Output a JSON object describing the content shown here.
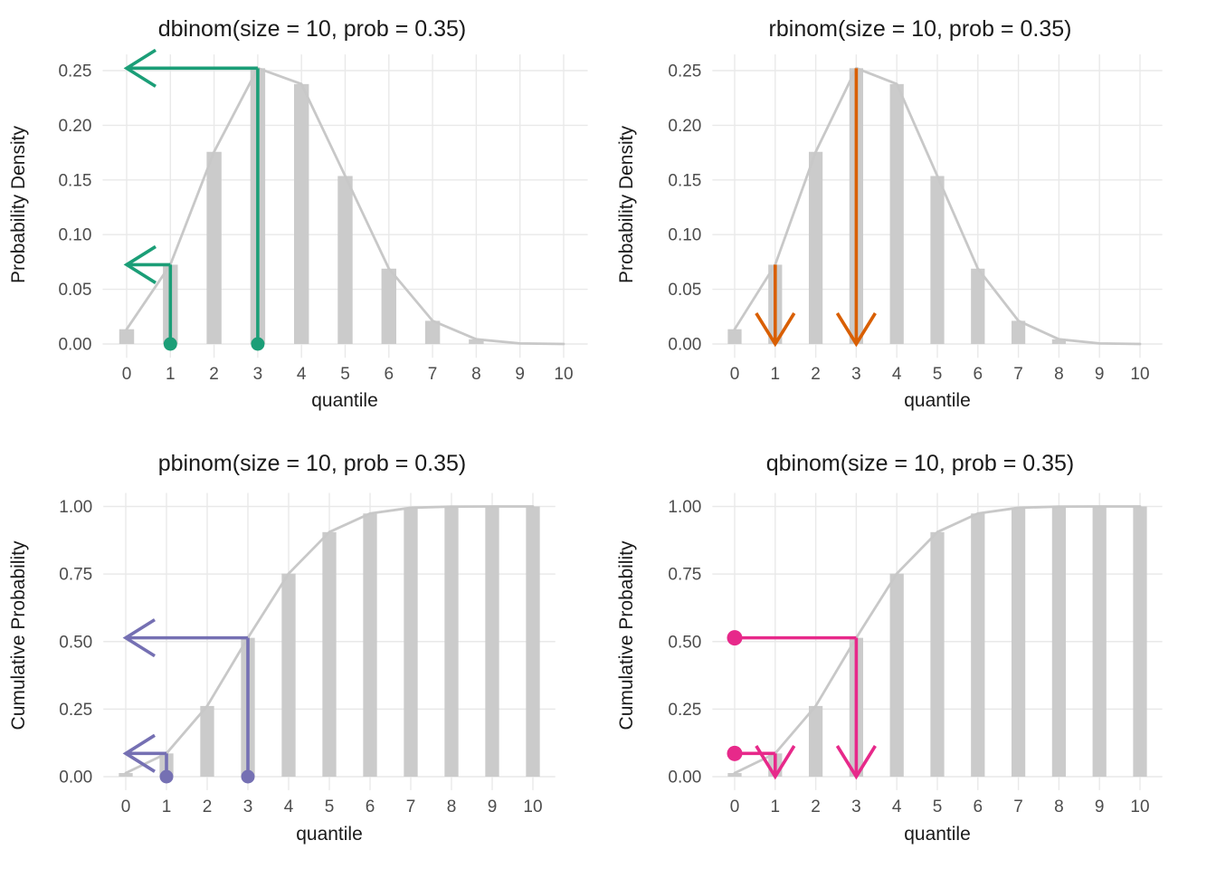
{
  "figure": {
    "background": "#FFFFFF"
  },
  "colors": {
    "bar": "#CBCBCB",
    "curve": "#C8C8C8",
    "grid": "#E9E9E9",
    "tick_text": "#4D4D4D",
    "title_text": "#1A1A1A",
    "dbinom_accent": "#1B9E77",
    "rbinom_accent": "#D95F02",
    "pbinom_accent": "#7570B3",
    "qbinom_accent": "#E7298A"
  },
  "chart_data": [
    {
      "type": "bar",
      "title": "dbinom(size = 10, prob = 0.35)",
      "xlabel": "quantile",
      "ylabel": "Probability Density",
      "categories": [
        0,
        1,
        2,
        3,
        4,
        5,
        6,
        7,
        8,
        9,
        10
      ],
      "values": [
        0.0135,
        0.0725,
        0.1757,
        0.2522,
        0.2377,
        0.1536,
        0.0689,
        0.0212,
        0.0043,
        0.0005,
        0.0
      ],
      "line_overlay": true,
      "grid": "major-only",
      "legend": "none",
      "xlim": [
        -0.55,
        10.55
      ],
      "ylim": [
        0,
        0.265
      ],
      "xticks": {
        "values": [
          0,
          1,
          2,
          3,
          4,
          5,
          6,
          7,
          8,
          9,
          10
        ],
        "labels": [
          "0",
          "1",
          "2",
          "3",
          "4",
          "5",
          "6",
          "7",
          "8",
          "9",
          "10"
        ]
      },
      "yticks": {
        "values": [
          0,
          0.05,
          0.1,
          0.15,
          0.2,
          0.25
        ],
        "labels": [
          "0.00",
          "0.05",
          "0.10",
          "0.15",
          "0.20",
          "0.25"
        ]
      },
      "annotation_style": "lookup-left",
      "annotation_color": "#1B9E77",
      "annotations": [
        {
          "quantile": 1,
          "probability": 0.0725
        },
        {
          "quantile": 3,
          "probability": 0.2522
        }
      ]
    },
    {
      "type": "bar",
      "title": "rbinom(size = 10, prob = 0.35)",
      "xlabel": "quantile",
      "ylabel": "Probability Density",
      "categories": [
        0,
        1,
        2,
        3,
        4,
        5,
        6,
        7,
        8,
        9,
        10
      ],
      "values": [
        0.0135,
        0.0725,
        0.1757,
        0.2522,
        0.2377,
        0.1536,
        0.0689,
        0.0212,
        0.0043,
        0.0005,
        0.0
      ],
      "line_overlay": true,
      "grid": "major-only",
      "legend": "none",
      "xlim": [
        -0.55,
        10.55
      ],
      "ylim": [
        0,
        0.265
      ],
      "xticks": {
        "values": [
          0,
          1,
          2,
          3,
          4,
          5,
          6,
          7,
          8,
          9,
          10
        ],
        "labels": [
          "0",
          "1",
          "2",
          "3",
          "4",
          "5",
          "6",
          "7",
          "8",
          "9",
          "10"
        ]
      },
      "yticks": {
        "values": [
          0,
          0.05,
          0.1,
          0.15,
          0.2,
          0.25
        ],
        "labels": [
          "0.00",
          "0.05",
          "0.10",
          "0.15",
          "0.20",
          "0.25"
        ]
      },
      "annotation_style": "drop-down",
      "annotation_color": "#D95F02",
      "annotations": [
        {
          "quantile": 1,
          "probability": 0.0725
        },
        {
          "quantile": 3,
          "probability": 0.2522
        }
      ]
    },
    {
      "type": "bar",
      "title": "pbinom(size = 10, prob = 0.35)",
      "xlabel": "quantile",
      "ylabel": "Cumulative Probability",
      "categories": [
        0,
        1,
        2,
        3,
        4,
        5,
        6,
        7,
        8,
        9,
        10
      ],
      "values": [
        0.0135,
        0.086,
        0.2616,
        0.5138,
        0.7515,
        0.9051,
        0.974,
        0.9952,
        0.9995,
        1.0,
        1.0
      ],
      "line_overlay": true,
      "grid": "major-only",
      "legend": "none",
      "xlim": [
        -0.55,
        10.55
      ],
      "ylim": [
        0,
        1.05
      ],
      "xticks": {
        "values": [
          0,
          1,
          2,
          3,
          4,
          5,
          6,
          7,
          8,
          9,
          10
        ],
        "labels": [
          "0",
          "1",
          "2",
          "3",
          "4",
          "5",
          "6",
          "7",
          "8",
          "9",
          "10"
        ]
      },
      "yticks": {
        "values": [
          0,
          0.25,
          0.5,
          0.75,
          1.0
        ],
        "labels": [
          "0.00",
          "0.25",
          "0.50",
          "0.75",
          "1.00"
        ]
      },
      "annotation_style": "lookup-left",
      "annotation_color": "#7570B3",
      "annotations": [
        {
          "quantile": 1,
          "probability": 0.086
        },
        {
          "quantile": 3,
          "probability": 0.5138
        }
      ]
    },
    {
      "type": "bar",
      "title": "qbinom(size = 10, prob = 0.35)",
      "xlabel": "quantile",
      "ylabel": "Cumulative Probability",
      "categories": [
        0,
        1,
        2,
        3,
        4,
        5,
        6,
        7,
        8,
        9,
        10
      ],
      "values": [
        0.0135,
        0.086,
        0.2616,
        0.5138,
        0.7515,
        0.9051,
        0.974,
        0.9952,
        0.9995,
        1.0,
        1.0
      ],
      "line_overlay": true,
      "grid": "major-only",
      "legend": "none",
      "xlim": [
        -0.55,
        10.55
      ],
      "ylim": [
        0,
        1.05
      ],
      "xticks": {
        "values": [
          0,
          1,
          2,
          3,
          4,
          5,
          6,
          7,
          8,
          9,
          10
        ],
        "labels": [
          "0",
          "1",
          "2",
          "3",
          "4",
          "5",
          "6",
          "7",
          "8",
          "9",
          "10"
        ]
      },
      "yticks": {
        "values": [
          0,
          0.25,
          0.5,
          0.75,
          1.0
        ],
        "labels": [
          "0.00",
          "0.25",
          "0.50",
          "0.75",
          "1.00"
        ]
      },
      "annotation_style": "trace-right-down",
      "annotation_color": "#E7298A",
      "annotations": [
        {
          "quantile": 1,
          "probability": 0.086
        },
        {
          "quantile": 3,
          "probability": 0.5138
        }
      ]
    }
  ]
}
